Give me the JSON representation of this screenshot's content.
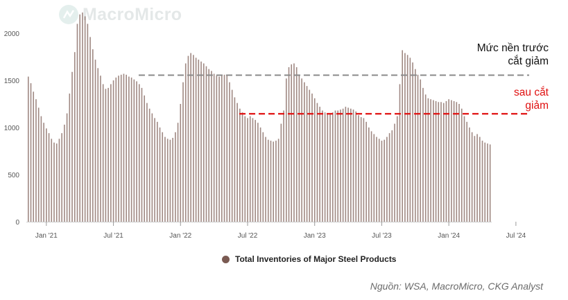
{
  "watermark": {
    "text": "MacroMicro"
  },
  "chart_data": {
    "type": "bar",
    "title": "",
    "xlabel": "",
    "ylabel": "",
    "ylim": [
      0,
      2250
    ],
    "y_ticks": [
      0,
      500,
      1000,
      1500,
      2000
    ],
    "x_ticks": [
      {
        "label": "Jan '21",
        "week": 7
      },
      {
        "label": "Jul '21",
        "week": 33
      },
      {
        "label": "Jan '22",
        "week": 59
      },
      {
        "label": "Jul '22",
        "week": 85
      },
      {
        "label": "Jan '23",
        "week": 111
      },
      {
        "label": "Jul '23",
        "week": 137
      },
      {
        "label": "Jan '24",
        "week": 163
      },
      {
        "label": "Jul '24",
        "week": 189
      }
    ],
    "series": [
      {
        "name": "Total Inventories of Major Steel Products",
        "color": "#7a5a52",
        "values": [
          1540,
          1470,
          1380,
          1300,
          1210,
          1120,
          1050,
          990,
          940,
          880,
          840,
          830,
          880,
          940,
          1030,
          1150,
          1360,
          1590,
          1800,
          2100,
          2200,
          2220,
          2180,
          2100,
          1960,
          1830,
          1720,
          1630,
          1550,
          1460,
          1410,
          1420,
          1460,
          1500,
          1530,
          1550,
          1560,
          1570,
          1560,
          1540,
          1530,
          1510,
          1490,
          1460,
          1420,
          1340,
          1260,
          1200,
          1150,
          1100,
          1060,
          1000,
          950,
          900,
          880,
          870,
          890,
          950,
          1050,
          1250,
          1480,
          1680,
          1760,
          1790,
          1770,
          1740,
          1720,
          1700,
          1680,
          1650,
          1620,
          1600,
          1570,
          1550,
          1540,
          1550,
          1560,
          1550,
          1480,
          1400,
          1320,
          1260,
          1200,
          1160,
          1120,
          1100,
          1120,
          1100,
          1080,
          1050,
          1000,
          950,
          900,
          870,
          860,
          850,
          860,
          880,
          1040,
          1180,
          1520,
          1640,
          1670,
          1680,
          1640,
          1560,
          1520,
          1480,
          1440,
          1400,
          1360,
          1310,
          1260,
          1220,
          1180,
          1160,
          1150,
          1140,
          1160,
          1180,
          1180,
          1190,
          1200,
          1220,
          1210,
          1200,
          1190,
          1170,
          1130,
          1110,
          1100,
          1060,
          1000,
          960,
          930,
          900,
          880,
          860,
          870,
          900,
          940,
          970,
          1040,
          1120,
          1460,
          1820,
          1790,
          1770,
          1740,
          1690,
          1620,
          1560,
          1510,
          1420,
          1350,
          1310,
          1300,
          1290,
          1280,
          1270,
          1270,
          1260,
          1280,
          1300,
          1290,
          1280,
          1270,
          1250,
          1200,
          1120,
          1060,
          1000,
          950,
          910,
          930,
          900,
          860,
          840,
          830,
          820
        ]
      }
    ],
    "reference_lines": [
      {
        "value": 1555,
        "color": "#8a8a8a",
        "start_week": 43,
        "label_lines": [
          "Mức nền trước",
          "cắt giảm"
        ]
      },
      {
        "value": 1145,
        "color": "#e01010",
        "start_week": 82,
        "label_lines": [
          "sau cắt",
          "giảm"
        ]
      }
    ],
    "legend_position": "bottom-center",
    "grid": false
  },
  "source_note": "Nguồn: WSA, MacroMicro, CKG Analyst"
}
